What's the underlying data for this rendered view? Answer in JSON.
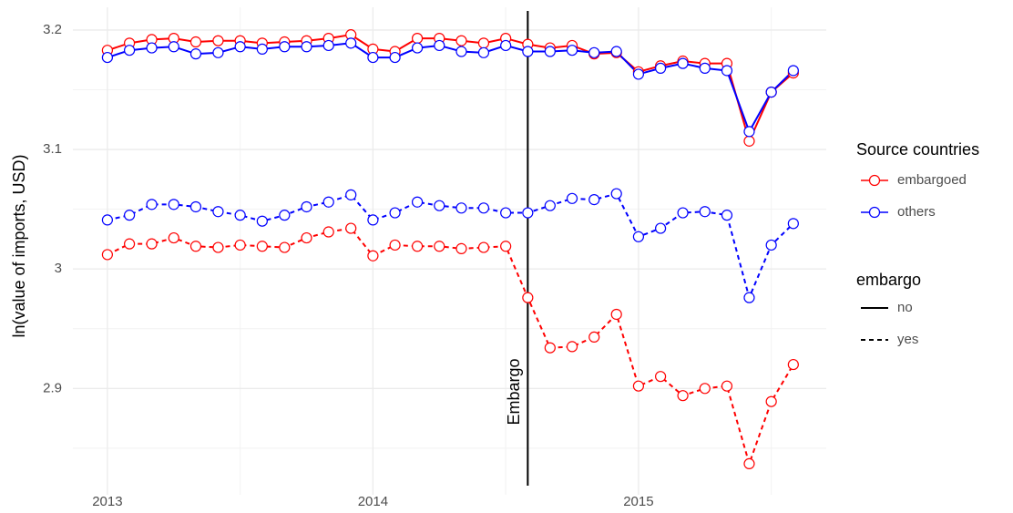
{
  "chart_data": {
    "type": "line",
    "y_label": "ln(value of imports, USD)",
    "x": [
      2013.0,
      2013.083,
      2013.167,
      2013.25,
      2013.333,
      2013.417,
      2013.5,
      2013.583,
      2013.667,
      2013.75,
      2013.833,
      2013.917,
      2014.0,
      2014.083,
      2014.167,
      2014.25,
      2014.333,
      2014.417,
      2014.5,
      2014.583,
      2014.667,
      2014.75,
      2014.833,
      2014.917,
      2015.0,
      2015.083,
      2015.167,
      2015.25,
      2015.333,
      2015.417,
      2015.5,
      2015.583
    ],
    "xlim": [
      2012.87,
      2015.707
    ],
    "xticks": [
      2013,
      2014,
      2015
    ],
    "ylim": [
      2.811,
      3.219
    ],
    "yticks": [
      2.9,
      3.0,
      3.1,
      3.2
    ],
    "grid": true,
    "annotation": {
      "text": "Embargo",
      "x": 2014.583
    },
    "legend": {
      "color_title": "Source countries",
      "colors": [
        {
          "name": "embargoed",
          "color": "#ff0000"
        },
        {
          "name": "others",
          "color": "#0000ff"
        }
      ],
      "linetype_title": "embargo",
      "linetypes": [
        {
          "name": "no",
          "dash": "solid"
        },
        {
          "name": "yes",
          "dash": "dashed"
        }
      ]
    },
    "series": [
      {
        "source": "embargoed",
        "embargo": "no",
        "values": [
          3.183,
          3.189,
          3.192,
          3.193,
          3.19,
          3.191,
          3.191,
          3.189,
          3.19,
          3.191,
          3.193,
          3.196,
          3.184,
          3.182,
          3.193,
          3.193,
          3.191,
          3.189,
          3.193,
          3.188,
          3.185,
          3.187,
          3.18,
          3.181,
          3.165,
          3.17,
          3.174,
          3.172,
          3.172,
          3.107,
          3.148,
          3.164
        ]
      },
      {
        "source": "others",
        "embargo": "no",
        "values": [
          3.177,
          3.183,
          3.185,
          3.186,
          3.18,
          3.181,
          3.186,
          3.184,
          3.186,
          3.186,
          3.187,
          3.189,
          3.177,
          3.177,
          3.185,
          3.187,
          3.182,
          3.181,
          3.187,
          3.182,
          3.182,
          3.183,
          3.181,
          3.182,
          3.163,
          3.168,
          3.172,
          3.168,
          3.166,
          3.115,
          3.148,
          3.166
        ]
      },
      {
        "source": "others",
        "embargo": "yes",
        "values": [
          3.041,
          3.045,
          3.054,
          3.054,
          3.052,
          3.048,
          3.045,
          3.04,
          3.045,
          3.052,
          3.056,
          3.062,
          3.041,
          3.047,
          3.056,
          3.053,
          3.051,
          3.051,
          3.047,
          3.047,
          3.053,
          3.059,
          3.058,
          3.063,
          3.027,
          3.034,
          3.047,
          3.048,
          3.045,
          2.976,
          3.02,
          3.038
        ]
      },
      {
        "source": "embargoed",
        "embargo": "yes",
        "values": [
          3.012,
          3.021,
          3.021,
          3.026,
          3.019,
          3.018,
          3.02,
          3.019,
          3.018,
          3.026,
          3.031,
          3.034,
          3.011,
          3.02,
          3.019,
          3.019,
          3.017,
          3.018,
          3.019,
          2.976,
          2.934,
          2.935,
          2.943,
          2.962,
          2.902,
          2.91,
          2.894,
          2.9,
          2.902,
          2.837,
          2.889,
          2.92
        ]
      }
    ]
  }
}
